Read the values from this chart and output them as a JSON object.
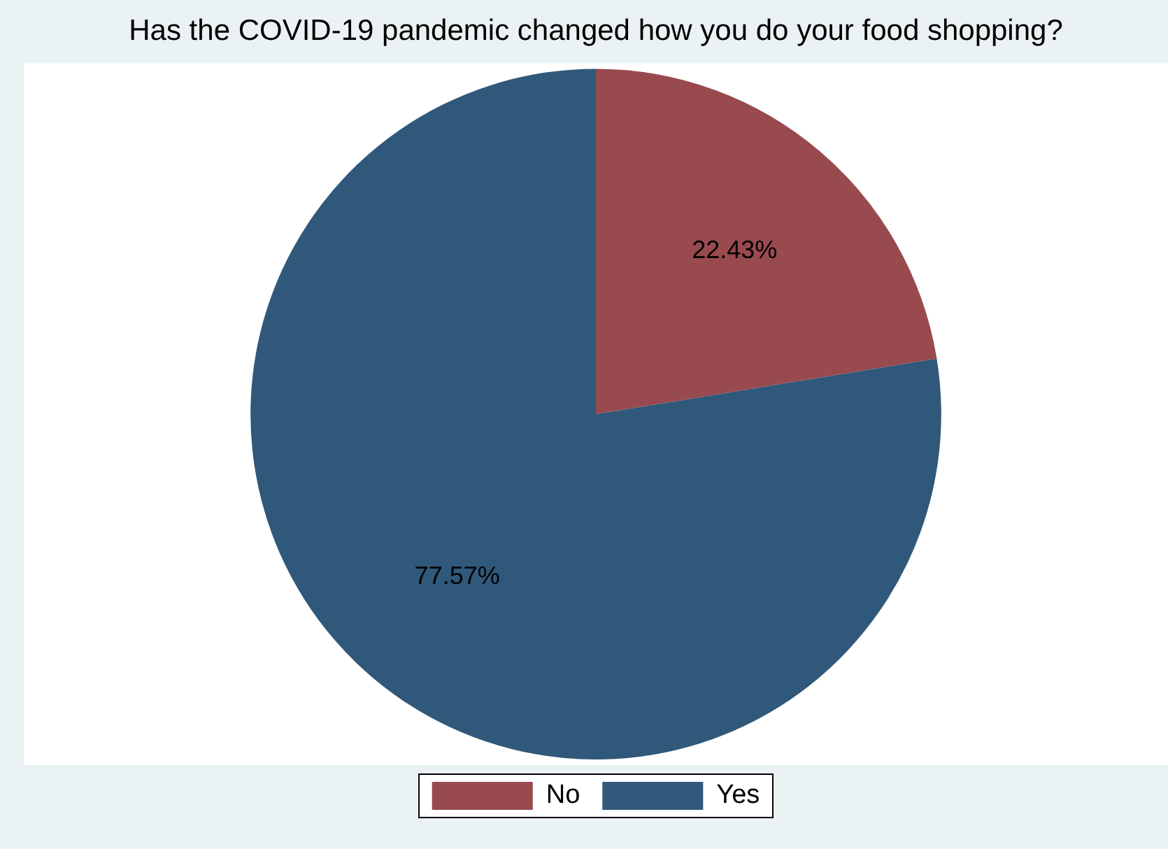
{
  "chart_data": {
    "type": "pie",
    "title": "Has the COVID-19 pandemic changed how you do your food shopping?",
    "categories": [
      "No",
      "Yes"
    ],
    "values": [
      22.43,
      77.57
    ],
    "colors": [
      "#984a4f",
      "#30587a"
    ],
    "value_labels": [
      "22.43%",
      "77.57%"
    ],
    "legend": "bottom"
  }
}
